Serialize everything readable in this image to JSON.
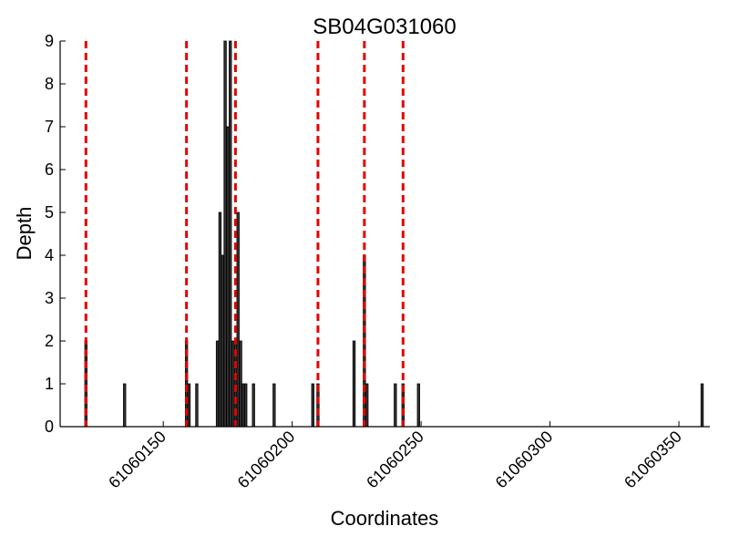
{
  "chart_data": {
    "type": "bar",
    "title": "SB04G031060",
    "xlabel": "Coordinates",
    "ylabel": "Depth",
    "xlim": [
      61060110,
      61060362
    ],
    "ylim": [
      0,
      9
    ],
    "x_ticks": [
      61060150,
      61060200,
      61060250,
      61060300,
      61060350
    ],
    "x_tick_labels": [
      "61060150",
      "61060200",
      "61060250",
      "61060300",
      "61060350"
    ],
    "y_ticks": [
      0,
      1,
      2,
      3,
      4,
      5,
      6,
      7,
      8,
      9
    ],
    "y_tick_labels": [
      "0",
      "1",
      "2",
      "3",
      "4",
      "5",
      "6",
      "7",
      "8",
      "9"
    ],
    "grid": false,
    "bar_color": "#333333",
    "line_color": "#e60000",
    "series": [
      {
        "x": [
          61060120,
          61060135,
          61060159,
          61060160,
          61060163,
          61060171,
          61060172,
          61060173,
          61060174,
          61060175,
          61060176,
          61060177,
          61060178,
          61060179,
          61060180,
          61060181,
          61060182,
          61060185,
          61060193,
          61060208,
          61060210,
          61060224,
          61060228,
          61060229,
          61060240,
          61060243,
          61060249,
          61060359
        ],
        "values": [
          2,
          1,
          2,
          1,
          1,
          2,
          5,
          4,
          9,
          7,
          9,
          2,
          2,
          5,
          2,
          1,
          1,
          1,
          1,
          1,
          1,
          2,
          4,
          1,
          1,
          1,
          1,
          1
        ]
      }
    ],
    "vertical_lines": [
      61060120,
      61060159,
      61060178,
      61060210,
      61060228,
      61060243
    ]
  }
}
